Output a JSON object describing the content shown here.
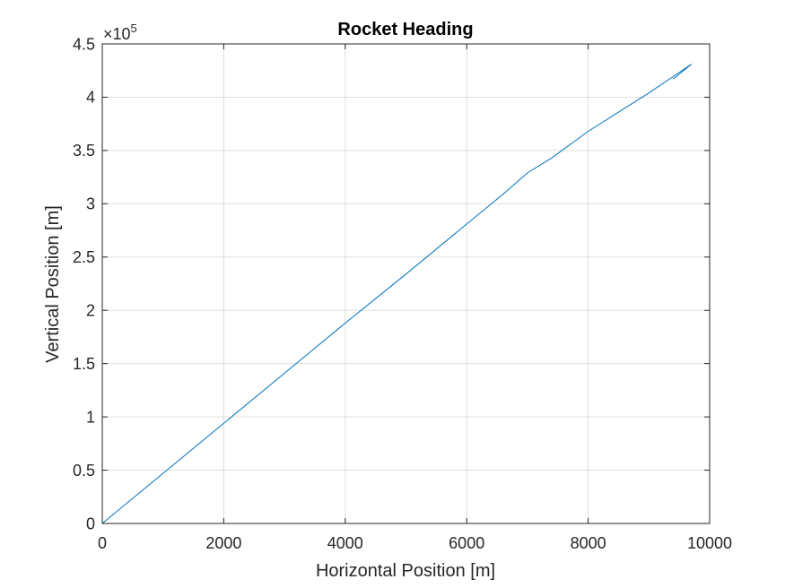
{
  "chart_data": {
    "type": "line",
    "title": "Rocket Heading",
    "xlabel": "Horizontal Position [m]",
    "ylabel": "Vertical Position [m]",
    "xlim": [
      0,
      10000
    ],
    "ylim": [
      0,
      450000
    ],
    "x_ticks": [
      0,
      2000,
      4000,
      6000,
      8000,
      10000
    ],
    "x_tick_labels": [
      "0",
      "2000",
      "4000",
      "6000",
      "8000",
      "10000"
    ],
    "y_ticks": [
      0,
      50000,
      100000,
      150000,
      200000,
      250000,
      300000,
      350000,
      400000,
      450000
    ],
    "y_tick_labels": [
      "0",
      "0.5",
      "1",
      "1.5",
      "2",
      "2.5",
      "3",
      "3.5",
      "4",
      "4.5"
    ],
    "y_exponent_base": "×10",
    "y_exponent_power": "5",
    "grid": true,
    "line_color": "#0072BD",
    "series": [
      {
        "x": [
          0,
          1000,
          2000,
          3000,
          4000,
          5000,
          6000,
          6600,
          7000,
          7400,
          8000,
          9000,
          9700,
          9550,
          9400
        ],
        "y": [
          0,
          47000,
          94000,
          141000,
          188000,
          234000,
          281000,
          309000,
          329000,
          343000,
          368000,
          404000,
          431000,
          424000,
          417000
        ]
      }
    ]
  }
}
